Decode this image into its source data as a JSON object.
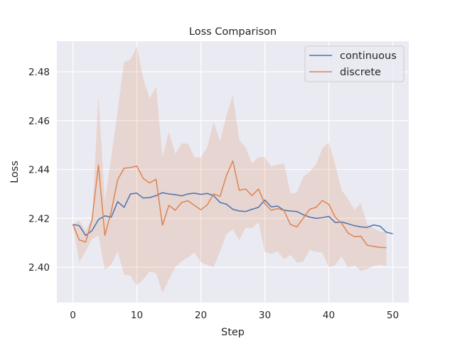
{
  "chart_data": {
    "type": "line",
    "title": "Loss Comparison",
    "xlabel": "Step",
    "ylabel": "Loss",
    "xlim": [
      -2.5,
      52.5
    ],
    "ylim": [
      2.3855,
      2.4925
    ],
    "x_ticks": [
      0,
      10,
      20,
      30,
      40,
      50
    ],
    "y_ticks": [
      2.4,
      2.42,
      2.44,
      2.46,
      2.48
    ],
    "y_tick_labels": [
      "2.40",
      "2.42",
      "2.44",
      "2.46",
      "2.48"
    ],
    "grid": true,
    "legend_position": "top-right",
    "series": [
      {
        "name": "continuous",
        "color": "#4c72b0",
        "x": [
          0,
          1,
          2,
          3,
          4,
          5,
          6,
          7,
          8,
          9,
          10,
          11,
          12,
          13,
          14,
          15,
          16,
          17,
          18,
          19,
          20,
          21,
          22,
          23,
          24,
          25,
          26,
          27,
          28,
          29,
          30,
          31,
          32,
          33,
          34,
          35,
          36,
          37,
          38,
          39,
          40,
          41,
          42,
          43,
          44,
          45,
          46,
          47,
          48,
          49,
          50
        ],
        "y": [
          2.4175,
          2.417,
          2.413,
          2.415,
          2.4195,
          2.421,
          2.4205,
          2.4268,
          2.4245,
          2.43,
          2.4303,
          2.4283,
          2.4285,
          2.4293,
          2.4305,
          2.43,
          2.4297,
          2.4292,
          2.43,
          2.4303,
          2.4298,
          2.4302,
          2.4293,
          2.4265,
          2.4258,
          2.4237,
          2.423,
          2.4228,
          2.4237,
          2.4245,
          2.4275,
          2.4247,
          2.425,
          2.4233,
          2.423,
          2.4228,
          2.4215,
          2.4205,
          2.42,
          2.4203,
          2.4208,
          2.4183,
          2.4185,
          2.4178,
          2.417,
          2.4165,
          2.4163,
          2.4173,
          2.4168,
          2.4143,
          2.4137
        ]
      },
      {
        "name": "discrete",
        "color": "#dd8452",
        "x": [
          0,
          1,
          2,
          3,
          4,
          5,
          6,
          7,
          8,
          9,
          10,
          11,
          12,
          13,
          14,
          15,
          16,
          17,
          18,
          19,
          20,
          21,
          22,
          23,
          24,
          25,
          26,
          27,
          28,
          29,
          30,
          31,
          32,
          33,
          34,
          35,
          36,
          37,
          38,
          39,
          40,
          41,
          42,
          43,
          44,
          45,
          46,
          47,
          48,
          49
        ],
        "y": [
          2.4175,
          2.4112,
          2.4103,
          2.4195,
          2.4418,
          2.413,
          2.4228,
          2.4358,
          2.4405,
          2.4408,
          2.4414,
          2.4363,
          2.4345,
          2.436,
          2.4172,
          2.4253,
          2.4233,
          2.4265,
          2.4272,
          2.4253,
          2.4235,
          2.4255,
          2.43,
          2.429,
          2.4375,
          2.4435,
          2.4315,
          2.432,
          2.4293,
          2.432,
          2.426,
          2.4233,
          2.424,
          2.4232,
          2.4175,
          2.4165,
          2.42,
          2.4237,
          2.4245,
          2.4273,
          2.4257,
          2.4205,
          2.418,
          2.414,
          2.4125,
          2.4127,
          2.409,
          2.4085,
          2.4081,
          2.408
        ],
        "band_upper": [
          2.4175,
          2.419,
          2.415,
          2.42,
          2.47,
          2.427,
          2.445,
          2.464,
          2.484,
          2.485,
          2.4905,
          2.477,
          2.469,
          2.474,
          2.445,
          2.4555,
          2.4465,
          2.4507,
          2.4505,
          2.445,
          2.445,
          2.449,
          2.4595,
          2.4515,
          2.462,
          2.4705,
          2.452,
          2.449,
          2.4425,
          2.445,
          2.445,
          2.4413,
          2.442,
          2.4425,
          2.4302,
          2.4305,
          2.437,
          2.439,
          2.442,
          2.4487,
          2.451,
          2.442,
          2.4315,
          2.428,
          2.4235,
          2.4262,
          2.4175,
          2.416,
          2.4145,
          2.4145
        ],
        "band_lower": [
          2.4175,
          2.402,
          2.4065,
          2.4115,
          2.413,
          2.399,
          2.401,
          2.4065,
          2.397,
          2.3965,
          2.3925,
          2.395,
          2.3983,
          2.3975,
          2.3895,
          2.395,
          2.4,
          2.4025,
          2.404,
          2.406,
          2.402,
          2.401,
          2.4,
          2.4065,
          2.4135,
          2.4155,
          2.411,
          2.416,
          2.416,
          2.4185,
          2.4063,
          2.4055,
          2.4065,
          2.4033,
          2.405,
          2.402,
          2.4023,
          2.407,
          2.4063,
          2.406,
          2.4,
          2.4008,
          2.4045,
          2.3997,
          2.4007,
          2.3985,
          2.3993,
          2.4005,
          2.401,
          2.4005
        ]
      }
    ]
  }
}
